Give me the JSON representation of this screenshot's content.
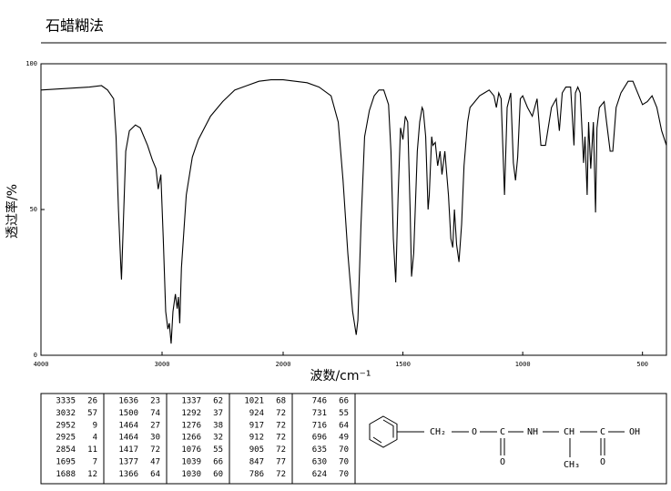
{
  "chart_data": {
    "type": "line",
    "title": "石蜡糊法",
    "x_label": "波数/cm⁻¹",
    "y_label": "透过率/%",
    "xlim": [
      4000,
      400
    ],
    "x_scale_change": 2000,
    "xticks": [
      4000,
      3000,
      2000,
      1500,
      1000,
      500
    ],
    "ylim": [
      0,
      100
    ],
    "yticks": [
      0,
      50,
      100
    ],
    "color": "#000000",
    "x": [
      4000,
      3800,
      3600,
      3500,
      3450,
      3400,
      3380,
      3360,
      3340,
      3335,
      3320,
      3300,
      3270,
      3220,
      3180,
      3120,
      3080,
      3050,
      3032,
      3010,
      2990,
      2970,
      2952,
      2940,
      2925,
      2910,
      2890,
      2875,
      2865,
      2854,
      2840,
      2800,
      2750,
      2700,
      2600,
      2500,
      2400,
      2300,
      2200,
      2100,
      2000,
      1900,
      1850,
      1800,
      1770,
      1750,
      1730,
      1710,
      1695,
      1688,
      1675,
      1660,
      1640,
      1620,
      1600,
      1580,
      1560,
      1550,
      1540,
      1530,
      1520,
      1510,
      1500,
      1490,
      1480,
      1470,
      1464,
      1455,
      1440,
      1430,
      1420,
      1415,
      1405,
      1395,
      1390,
      1380,
      1375,
      1365,
      1355,
      1345,
      1337,
      1325,
      1310,
      1300,
      1292,
      1285,
      1276,
      1266,
      1255,
      1245,
      1230,
      1220,
      1200,
      1180,
      1160,
      1140,
      1120,
      1110,
      1100,
      1090,
      1076,
      1065,
      1050,
      1039,
      1030,
      1021,
      1010,
      1000,
      980,
      960,
      940,
      924,
      917,
      912,
      905,
      880,
      860,
      847,
      835,
      820,
      800,
      786,
      780,
      770,
      760,
      746,
      740,
      731,
      725,
      716,
      705,
      696,
      690,
      680,
      660,
      650,
      635,
      630,
      624,
      610,
      590,
      560,
      540,
      510,
      500,
      480,
      460,
      440,
      420,
      400
    ],
    "values": [
      91,
      91.5,
      92,
      92.5,
      91,
      88,
      75,
      50,
      30,
      26,
      45,
      70,
      77,
      79,
      78,
      72,
      67,
      64,
      57,
      62,
      40,
      15,
      9,
      11,
      4,
      15,
      21,
      16,
      20,
      11,
      30,
      55,
      68,
      74,
      82,
      87,
      91,
      92.5,
      94,
      94.5,
      94.5,
      93.5,
      92,
      89,
      80,
      60,
      35,
      15,
      7,
      12,
      45,
      75,
      84,
      89,
      91,
      91,
      86,
      70,
      40,
      25,
      55,
      78,
      74,
      82,
      80,
      50,
      27,
      35,
      70,
      80,
      85,
      84,
      75,
      50,
      55,
      75,
      72,
      73,
      65,
      70,
      62,
      70,
      55,
      40,
      37,
      50,
      38,
      32,
      45,
      65,
      80,
      85,
      87,
      89,
      90,
      91,
      89,
      85,
      90,
      88,
      55,
      85,
      90,
      66,
      60,
      68,
      88,
      89,
      85,
      82,
      88,
      72,
      72,
      72,
      72,
      85,
      88,
      77,
      90,
      92,
      92,
      72,
      90,
      92,
      90,
      66,
      75,
      55,
      80,
      64,
      80,
      49,
      78,
      85,
      87,
      80,
      70,
      70,
      70,
      85,
      90,
      94,
      94,
      88,
      86,
      87,
      89,
      85,
      77,
      72
    ]
  },
  "peak_table": {
    "columns": [
      [
        [
          3335,
          26
        ],
        [
          3032,
          57
        ],
        [
          2952,
          9
        ],
        [
          2925,
          4
        ],
        [
          2854,
          11
        ],
        [
          1695,
          7
        ],
        [
          1688,
          12
        ]
      ],
      [
        [
          1636,
          23
        ],
        [
          1500,
          74
        ],
        [
          1464,
          27
        ],
        [
          1464,
          30
        ],
        [
          1417,
          72
        ],
        [
          1377,
          47
        ],
        [
          1366,
          64
        ]
      ],
      [
        [
          1337,
          62
        ],
        [
          1292,
          37
        ],
        [
          1276,
          38
        ],
        [
          1266,
          32
        ],
        [
          1076,
          55
        ],
        [
          1039,
          66
        ],
        [
          1030,
          60
        ]
      ],
      [
        [
          1021,
          68
        ],
        [
          924,
          72
        ],
        [
          917,
          72
        ],
        [
          912,
          72
        ],
        [
          905,
          72
        ],
        [
          847,
          77
        ],
        [
          786,
          72
        ]
      ],
      [
        [
          746,
          66
        ],
        [
          731,
          55
        ],
        [
          716,
          64
        ],
        [
          696,
          49
        ],
        [
          635,
          70
        ],
        [
          630,
          70
        ],
        [
          624,
          70
        ]
      ]
    ]
  },
  "structure": {
    "labels": [
      "CH₂",
      "O",
      "C",
      "NH",
      "CH",
      "C",
      "OH",
      "O",
      "CH₃",
      "O"
    ]
  }
}
